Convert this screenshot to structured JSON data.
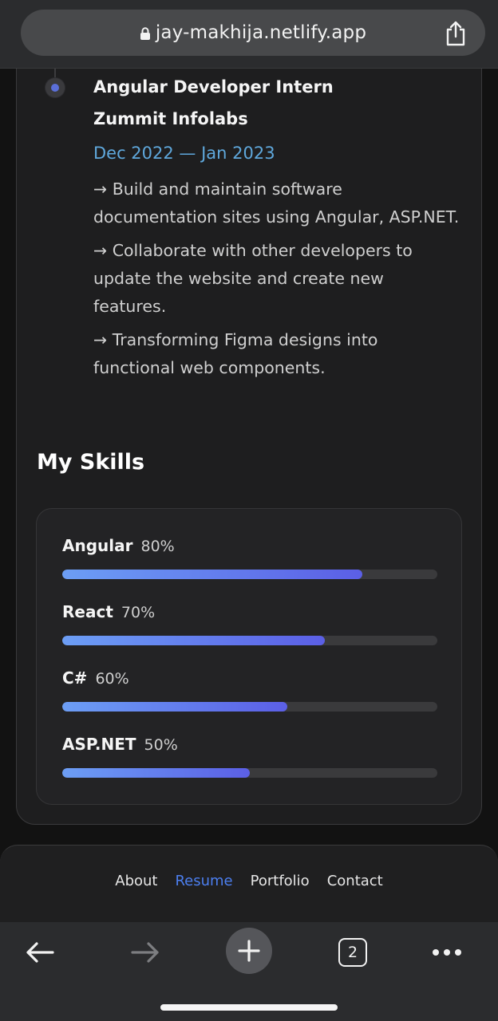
{
  "browser": {
    "url": "jay-makhija.netlify.app",
    "tabs_count": "2",
    "icons": [
      "lock-icon",
      "share-icon",
      "back-arrow-icon",
      "forward-arrow-icon",
      "plus-icon",
      "tabs-icon",
      "more-icon"
    ]
  },
  "experience": {
    "title": "Angular Developer Intern",
    "company": "Zummit Infolabs",
    "dates": "Dec 2022 — Jan 2023",
    "points": [
      "→ Build and maintain software documentation sites using Angular, ASP.NET.",
      "→ Collaborate with other developers to update the website and create new features.",
      "→ Transforming Figma designs into functional web components."
    ]
  },
  "skills": {
    "heading": "My Skills",
    "items": [
      {
        "name": "Angular",
        "percent_label": "80%",
        "percent": 80
      },
      {
        "name": "React",
        "percent_label": "70%",
        "percent": 70
      },
      {
        "name": "C#",
        "percent_label": "60%",
        "percent": 60
      },
      {
        "name": "ASP.NET",
        "percent_label": "50%",
        "percent": 50
      }
    ]
  },
  "nav": {
    "links": [
      {
        "label": "About",
        "active": false
      },
      {
        "label": "Resume",
        "active": true
      },
      {
        "label": "Portfolio",
        "active": false
      },
      {
        "label": "Contact",
        "active": false
      }
    ]
  },
  "colors": {
    "accent": "#4c7ff0",
    "date": "#5fa8dc",
    "bar_start": "#6c9ef5",
    "bar_end": "#5b5fe6"
  }
}
